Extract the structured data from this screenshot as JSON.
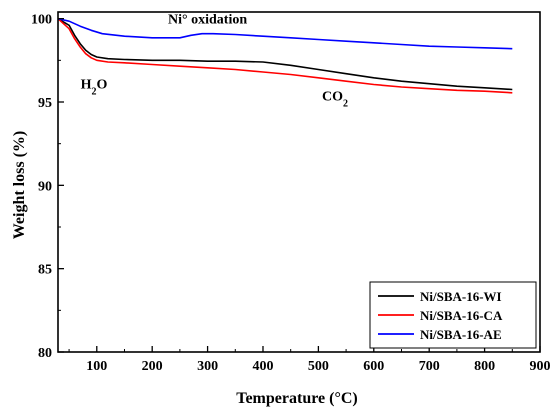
{
  "chart_data": {
    "type": "line",
    "xlabel": "Temperature (°C)",
    "ylabel": "Weight loss (%)",
    "xlim": [
      30,
      900
    ],
    "ylim": [
      80,
      100.4
    ],
    "x_ticks": [
      100,
      200,
      300,
      400,
      500,
      600,
      700,
      800,
      900
    ],
    "y_ticks": [
      80,
      85,
      90,
      95,
      100
    ],
    "legend_position": "bottom-right",
    "annotations": [
      {
        "text": "Ni° oxidation",
        "x": 300,
        "y": 99.7
      },
      {
        "text": "H",
        "sub": "2",
        "after": "O",
        "x": 95,
        "y": 95.8
      },
      {
        "text": "CO",
        "sub": "2",
        "x": 530,
        "y": 95.1
      }
    ],
    "series": [
      {
        "name": "Ni/SBA-16-WI",
        "color": "#000000",
        "x": [
          30,
          50,
          60,
          70,
          80,
          90,
          100,
          120,
          150,
          200,
          250,
          300,
          350,
          400,
          450,
          500,
          550,
          600,
          650,
          700,
          750,
          800,
          850
        ],
        "y": [
          100,
          99.6,
          99.0,
          98.5,
          98.1,
          97.85,
          97.7,
          97.6,
          97.55,
          97.5,
          97.5,
          97.45,
          97.45,
          97.4,
          97.2,
          96.95,
          96.7,
          96.45,
          96.25,
          96.1,
          95.95,
          95.85,
          95.75
        ]
      },
      {
        "name": "Ni/SBA-16-CA",
        "color": "#ff0000",
        "x": [
          30,
          50,
          60,
          70,
          80,
          90,
          100,
          120,
          150,
          200,
          250,
          300,
          350,
          400,
          450,
          500,
          550,
          600,
          650,
          700,
          750,
          800,
          850
        ],
        "y": [
          100,
          99.4,
          98.8,
          98.3,
          97.9,
          97.65,
          97.5,
          97.4,
          97.35,
          97.25,
          97.15,
          97.05,
          96.95,
          96.8,
          96.65,
          96.45,
          96.25,
          96.05,
          95.9,
          95.8,
          95.7,
          95.65,
          95.55
        ]
      },
      {
        "name": "Ni/SBA-16-AE",
        "color": "#0000ff",
        "x": [
          30,
          50,
          70,
          90,
          110,
          150,
          200,
          250,
          270,
          290,
          310,
          350,
          400,
          450,
          500,
          550,
          600,
          650,
          700,
          750,
          800,
          850
        ],
        "y": [
          100,
          99.85,
          99.55,
          99.3,
          99.1,
          98.95,
          98.85,
          98.85,
          99.0,
          99.1,
          99.1,
          99.05,
          98.95,
          98.85,
          98.75,
          98.65,
          98.55,
          98.45,
          98.35,
          98.3,
          98.25,
          98.2
        ]
      }
    ]
  }
}
